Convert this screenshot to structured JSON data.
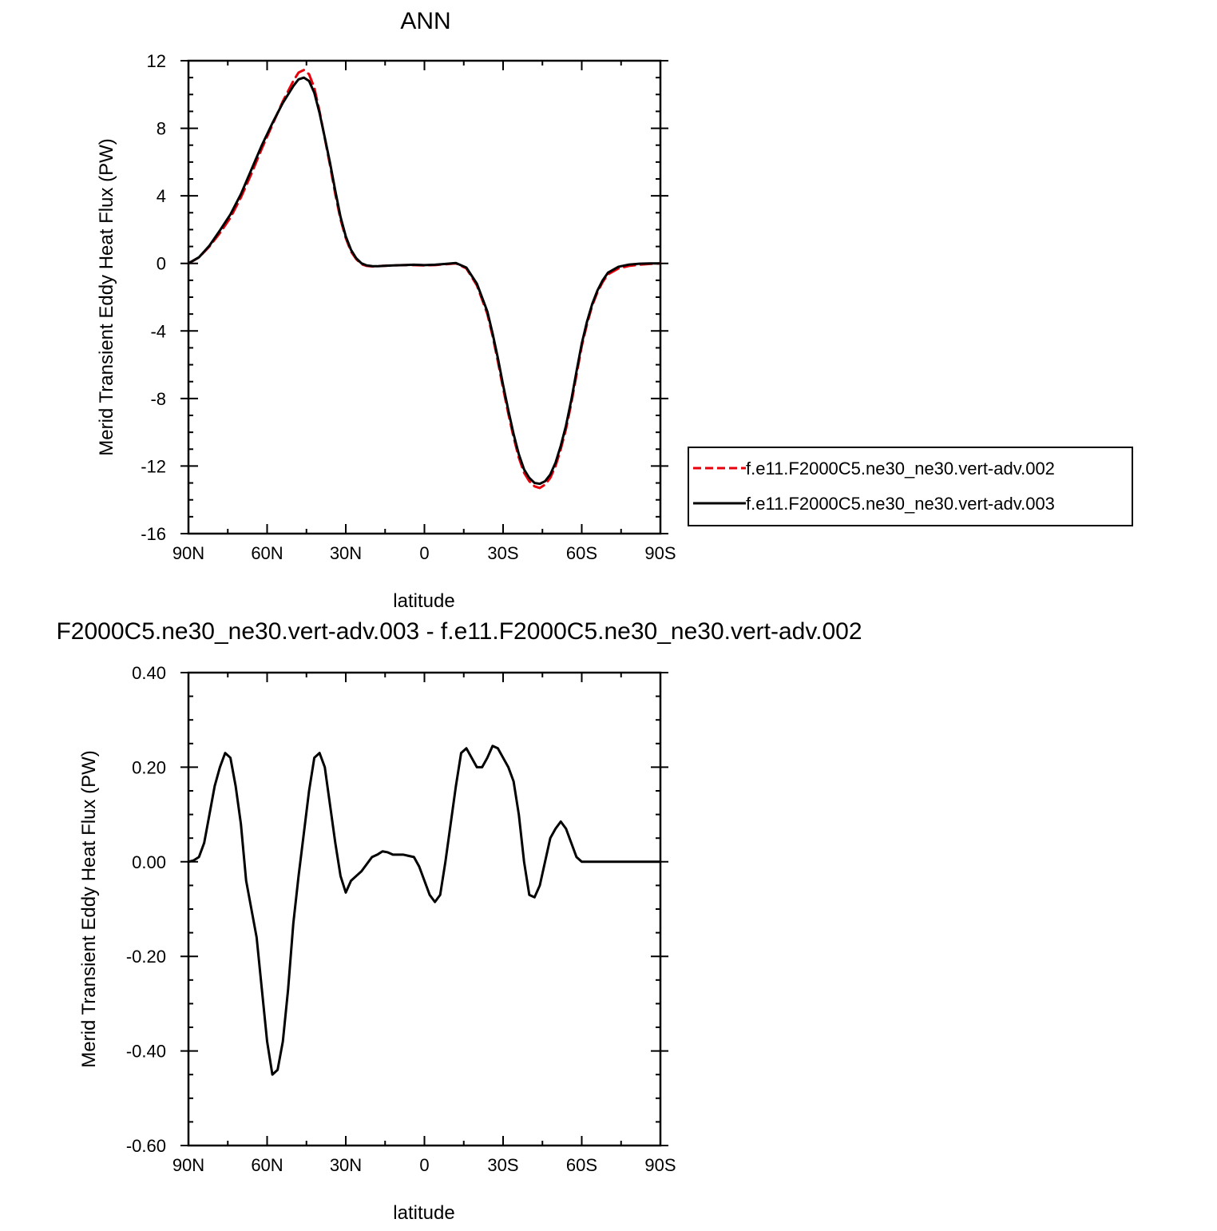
{
  "chart_data": [
    {
      "type": "line",
      "title": "ANN",
      "xlabel": "latitude",
      "ylabel": "Merid Transient Eddy Heat Flux (PW)",
      "xlim": [
        90,
        -90
      ],
      "ylim": [
        -16,
        12
      ],
      "xticks": [
        {
          "value": 90,
          "label": "90N"
        },
        {
          "value": 60,
          "label": "60N"
        },
        {
          "value": 30,
          "label": "30N"
        },
        {
          "value": 0,
          "label": "0"
        },
        {
          "value": -30,
          "label": "30S"
        },
        {
          "value": -60,
          "label": "60S"
        },
        {
          "value": -90,
          "label": "90S"
        }
      ],
      "yticks": [
        {
          "value": 12,
          "label": "12"
        },
        {
          "value": 8,
          "label": "8"
        },
        {
          "value": 4,
          "label": "4"
        },
        {
          "value": 0,
          "label": "0"
        },
        {
          "value": -4,
          "label": "-4"
        },
        {
          "value": -8,
          "label": "-8"
        },
        {
          "value": -12,
          "label": "-12"
        },
        {
          "value": -16,
          "label": "-16"
        }
      ],
      "legend": "right",
      "series": [
        {
          "name": "f.e11.F2000C5.ne30_ne30.vert-adv.002",
          "color": "#e8000b",
          "dash": "dashed",
          "x": [
            90,
            86,
            82,
            78,
            74,
            70,
            66,
            62,
            58,
            54,
            50,
            48,
            46,
            44,
            42,
            40,
            38,
            36,
            34,
            32,
            30,
            28,
            26,
            24,
            22,
            20,
            18,
            16,
            12,
            8,
            4,
            0,
            -4,
            -8,
            -12,
            -16,
            -20,
            -24,
            -26,
            -28,
            -30,
            -32,
            -34,
            -36,
            -38,
            -40,
            -42,
            -44,
            -46,
            -48,
            -50,
            -52,
            -54,
            -56,
            -58,
            -60,
            -62,
            -64,
            -66,
            -68,
            -70,
            -74,
            -78,
            -82,
            -86,
            -90
          ],
          "y": [
            0.0,
            0.35,
            1.0,
            1.8,
            2.7,
            3.9,
            5.3,
            6.8,
            8.2,
            9.6,
            10.8,
            11.3,
            11.45,
            11.2,
            10.4,
            9.0,
            7.4,
            5.8,
            4.1,
            2.6,
            1.5,
            0.7,
            0.25,
            -0.05,
            -0.15,
            -0.18,
            -0.17,
            -0.15,
            -0.12,
            -0.1,
            -0.1,
            -0.12,
            -0.1,
            -0.05,
            0.0,
            -0.3,
            -1.3,
            -3.0,
            -4.3,
            -5.8,
            -7.4,
            -8.9,
            -10.3,
            -11.5,
            -12.4,
            -12.9,
            -13.2,
            -13.3,
            -13.1,
            -12.7,
            -12.0,
            -11.0,
            -9.8,
            -8.3,
            -6.6,
            -4.9,
            -3.6,
            -2.5,
            -1.7,
            -1.1,
            -0.65,
            -0.3,
            -0.15,
            -0.08,
            -0.03,
            0.0
          ]
        },
        {
          "name": "f.e11.F2000C5.ne30_ne30.vert-adv.003",
          "color": "#000000",
          "dash": "solid",
          "x": [
            90,
            86,
            82,
            78,
            74,
            70,
            66,
            62,
            58,
            54,
            50,
            48,
            46,
            44,
            42,
            40,
            38,
            36,
            34,
            32,
            30,
            28,
            26,
            24,
            22,
            20,
            18,
            16,
            12,
            8,
            4,
            0,
            -4,
            -8,
            -12,
            -16,
            -20,
            -24,
            -26,
            -28,
            -30,
            -32,
            -34,
            -36,
            -38,
            -40,
            -42,
            -44,
            -46,
            -48,
            -50,
            -52,
            -54,
            -56,
            -58,
            -60,
            -62,
            -64,
            -66,
            -68,
            -70,
            -74,
            -78,
            -82,
            -86,
            -90
          ],
          "y": [
            0.0,
            0.36,
            1.05,
            1.95,
            2.9,
            4.1,
            5.55,
            7.0,
            8.3,
            9.5,
            10.5,
            10.9,
            11.0,
            10.8,
            10.1,
            8.9,
            7.45,
            5.95,
            4.3,
            2.75,
            1.6,
            0.8,
            0.3,
            0.0,
            -0.12,
            -0.16,
            -0.17,
            -0.15,
            -0.12,
            -0.1,
            -0.08,
            -0.1,
            -0.08,
            -0.03,
            0.02,
            -0.25,
            -1.2,
            -2.85,
            -4.15,
            -5.6,
            -7.2,
            -8.7,
            -10.1,
            -11.3,
            -12.2,
            -12.7,
            -13.0,
            -13.05,
            -12.9,
            -12.5,
            -11.8,
            -10.8,
            -9.6,
            -8.1,
            -6.4,
            -4.75,
            -3.45,
            -2.4,
            -1.6,
            -1.0,
            -0.55,
            -0.2,
            -0.07,
            -0.02,
            0.0,
            0.0
          ]
        }
      ]
    },
    {
      "type": "line",
      "title": "F2000C5.ne30_ne30.vert-adv.003 - f.e11.F2000C5.ne30_ne30.vert-adv.002",
      "xlabel": "latitude",
      "ylabel": "Merid Transient Eddy Heat Flux (PW)",
      "xlim": [
        90,
        -90
      ],
      "ylim": [
        -0.6,
        0.4
      ],
      "xticks": [
        {
          "value": 90,
          "label": "90N"
        },
        {
          "value": 60,
          "label": "60N"
        },
        {
          "value": 30,
          "label": "30N"
        },
        {
          "value": 0,
          "label": "0"
        },
        {
          "value": -30,
          "label": "30S"
        },
        {
          "value": -60,
          "label": "60S"
        },
        {
          "value": -90,
          "label": "90S"
        }
      ],
      "yticks": [
        {
          "value": 0.4,
          "label": "0.40"
        },
        {
          "value": 0.2,
          "label": "0.20"
        },
        {
          "value": 0.0,
          "label": "0.00"
        },
        {
          "value": -0.2,
          "label": "-0.20"
        },
        {
          "value": -0.4,
          "label": "-0.40"
        },
        {
          "value": -0.6,
          "label": "-0.60"
        }
      ],
      "series": [
        {
          "color": "#000000",
          "dash": "solid",
          "x": [
            90,
            88,
            86,
            84,
            82,
            80,
            78,
            76,
            74,
            72,
            70,
            68,
            66,
            64,
            62,
            60,
            58,
            56,
            54,
            52,
            50,
            48,
            46,
            44,
            42,
            40,
            38,
            36,
            34,
            32,
            30,
            28,
            26,
            24,
            22,
            20,
            18,
            16,
            14,
            12,
            8,
            4,
            2,
            0,
            -2,
            -4,
            -6,
            -8,
            -10,
            -12,
            -14,
            -16,
            -18,
            -20,
            -22,
            -24,
            -26,
            -28,
            -30,
            -32,
            -34,
            -36,
            -38,
            -40,
            -42,
            -44,
            -46,
            -48,
            -50,
            -52,
            -54,
            -56,
            -58,
            -60,
            -62,
            -64,
            -66,
            -68,
            -70,
            -72,
            -74,
            -76,
            -78,
            -80,
            -82,
            -84,
            -86,
            -88,
            -90
          ],
          "y": [
            0.0,
            0.003,
            0.01,
            0.04,
            0.1,
            0.16,
            0.2,
            0.23,
            0.22,
            0.16,
            0.08,
            -0.04,
            -0.1,
            -0.16,
            -0.27,
            -0.38,
            -0.45,
            -0.44,
            -0.38,
            -0.27,
            -0.13,
            -0.03,
            0.06,
            0.15,
            0.22,
            0.23,
            0.2,
            0.12,
            0.04,
            -0.03,
            -0.065,
            -0.04,
            -0.03,
            -0.02,
            -0.005,
            0.01,
            0.015,
            0.022,
            0.02,
            0.015,
            0.015,
            0.01,
            -0.01,
            -0.04,
            -0.07,
            -0.085,
            -0.07,
            0.0,
            0.08,
            0.16,
            0.23,
            0.24,
            0.22,
            0.2,
            0.2,
            0.22,
            0.245,
            0.24,
            0.22,
            0.2,
            0.17,
            0.1,
            0.0,
            -0.07,
            -0.075,
            -0.05,
            0.0,
            0.05,
            0.07,
            0.085,
            0.07,
            0.04,
            0.01,
            0.0,
            0.0,
            0.0,
            0.0,
            0.0,
            0.0,
            0.0,
            0.0,
            0.0,
            0.0,
            0.0,
            0.0,
            0.0,
            0.0,
            0.0,
            0.0
          ]
        }
      ]
    }
  ]
}
